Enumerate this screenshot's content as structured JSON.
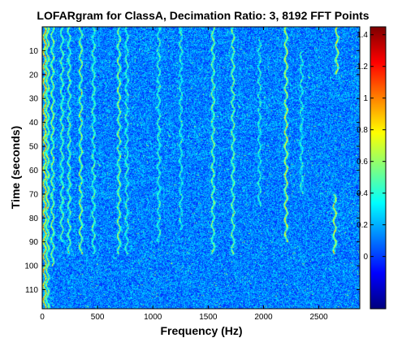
{
  "chart_data": {
    "type": "heatmap",
    "title": "LOFARgram for ClassA, Decimation Ratio: 3, 8192 FFT Points",
    "xlabel": "Frequency (Hz)",
    "ylabel": "Time (seconds)",
    "x_range": [
      0,
      2870
    ],
    "y_range": [
      0,
      118
    ],
    "y_reversed": true,
    "x_ticks": [
      "0",
      "500",
      "1000",
      "1500",
      "2000",
      "2500"
    ],
    "x_tick_values": [
      0,
      500,
      1000,
      1500,
      2000,
      2500
    ],
    "y_ticks": [
      "10",
      "20",
      "30",
      "40",
      "50",
      "60",
      "70",
      "80",
      "90",
      "100",
      "110"
    ],
    "y_tick_values": [
      10,
      20,
      30,
      40,
      50,
      60,
      70,
      80,
      90,
      100,
      110
    ],
    "colorbar": {
      "colormap": "jet",
      "range": [
        -0.33,
        1.45
      ],
      "ticks": [
        "0",
        "0.2",
        "0.4",
        "0.6",
        "0.8",
        "1",
        "1.2",
        "1.4"
      ],
      "tick_values": [
        0,
        0.2,
        0.4,
        0.6,
        0.8,
        1,
        1.2,
        1.4
      ]
    },
    "background_level": 0.1,
    "tonal_lines": [
      {
        "freq": 18,
        "time_from": 0,
        "time_to": 118,
        "level": 0.9
      },
      {
        "freq": 45,
        "time_from": 0,
        "time_to": 118,
        "level": 0.6
      },
      {
        "freq": 90,
        "time_from": 0,
        "time_to": 100,
        "level": 0.55
      },
      {
        "freq": 175,
        "time_from": 0,
        "time_to": 90,
        "level": 0.45
      },
      {
        "freq": 240,
        "time_from": 0,
        "time_to": 95,
        "level": 0.45
      },
      {
        "freq": 345,
        "time_from": 0,
        "time_to": 95,
        "level": 0.55
      },
      {
        "freq": 460,
        "time_from": 0,
        "time_to": 95,
        "level": 0.4
      },
      {
        "freq": 690,
        "time_from": 0,
        "time_to": 95,
        "level": 0.55
      },
      {
        "freq": 760,
        "time_from": 0,
        "time_to": 95,
        "level": 0.35
      },
      {
        "freq": 1050,
        "time_from": 0,
        "time_to": 90,
        "level": 0.35
      },
      {
        "freq": 1250,
        "time_from": 0,
        "time_to": 85,
        "level": 0.3
      },
      {
        "freq": 1540,
        "time_from": 0,
        "time_to": 95,
        "level": 0.5
      },
      {
        "freq": 1720,
        "time_from": 0,
        "time_to": 95,
        "level": 0.5
      },
      {
        "freq": 1960,
        "time_from": 5,
        "time_to": 75,
        "level": 0.3
      },
      {
        "freq": 2200,
        "time_from": 0,
        "time_to": 90,
        "level": 0.7
      },
      {
        "freq": 2340,
        "time_from": 10,
        "time_to": 70,
        "level": 0.3
      },
      {
        "freq": 2660,
        "time_from": 0,
        "time_to": 20,
        "level": 0.7
      },
      {
        "freq": 2640,
        "time_from": 70,
        "time_to": 95,
        "level": 0.7
      }
    ]
  }
}
